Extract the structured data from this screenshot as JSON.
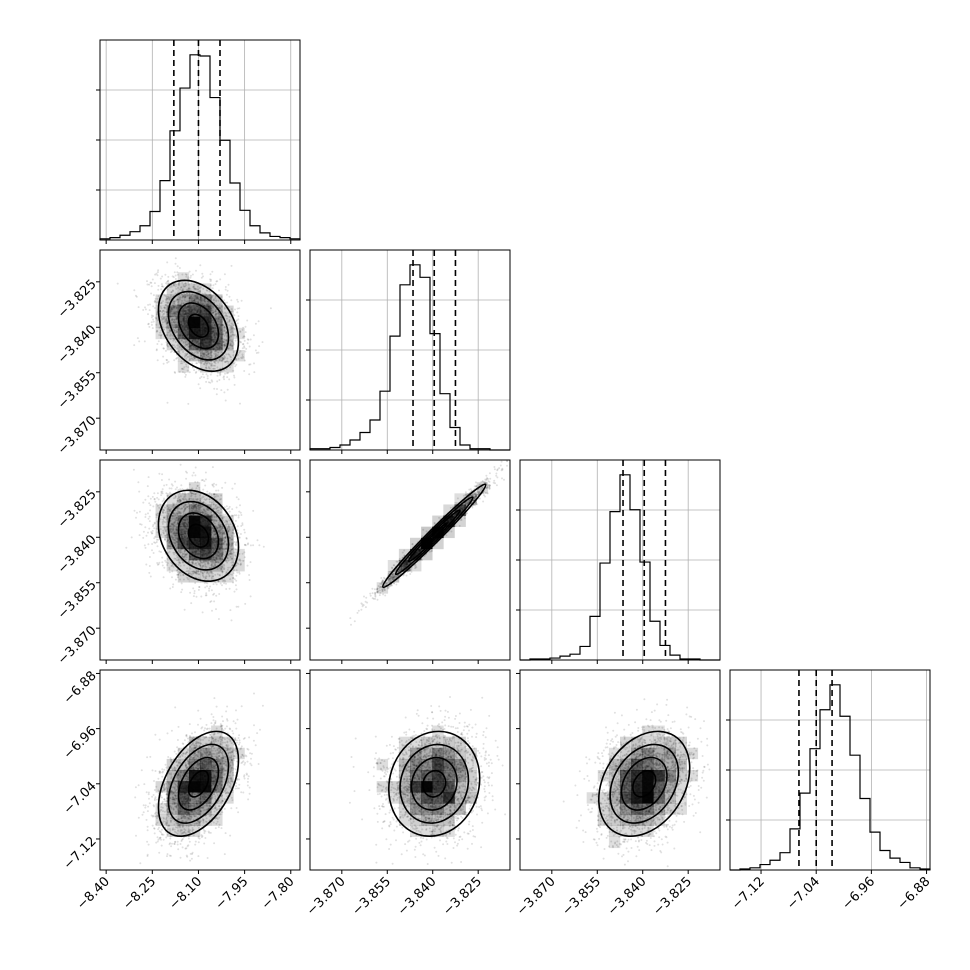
{
  "chart_data": {
    "type": "corner",
    "title": "",
    "parameters": [
      {
        "range": [
          -8.42,
          -7.77
        ],
        "ticks": [
          -8.4,
          -8.25,
          -8.1,
          -7.95,
          -7.8
        ],
        "tick_labels": [
          "−8.40",
          "−8.25",
          "−8.10",
          "−7.95",
          "−7.80"
        ],
        "quantiles": [
          -8.18,
          -8.1,
          -8.03
        ],
        "hist_counts": [
          1,
          2,
          4,
          7,
          12,
          24,
          50,
          92,
          128,
          156,
          155,
          120,
          84,
          48,
          25,
          12,
          6,
          3,
          2,
          1
        ]
      },
      {
        "range": [
          -3.8805,
          -3.8145
        ],
        "ticks": [
          -3.87,
          -3.855,
          -3.84,
          -3.825
        ],
        "tick_labels": [
          "−3.870",
          "−3.855",
          "−3.840",
          "−3.825"
        ],
        "quantiles": [
          -3.8465,
          -3.8395,
          -3.8325
        ],
        "hist_counts": [
          1,
          1,
          2,
          4,
          8,
          14,
          24,
          47,
          91,
          132,
          148,
          138,
          93,
          45,
          18,
          4,
          1,
          1,
          0,
          0
        ]
      },
      {
        "range": [
          -3.8805,
          -3.8145
        ],
        "ticks": [
          -3.87,
          -3.855,
          -3.84,
          -3.825
        ],
        "tick_labels": [
          "−3.870",
          "−3.855",
          "−3.840",
          "−3.825"
        ],
        "quantiles": [
          -3.8465,
          -3.8395,
          -3.8325
        ],
        "hist_counts": [
          0,
          1,
          1,
          2,
          4,
          6,
          14,
          45,
          100,
          153,
          191,
          155,
          101,
          40,
          15,
          5,
          1,
          1,
          0,
          0
        ]
      },
      {
        "range": [
          -7.165,
          -6.875
        ],
        "ticks": [
          -7.12,
          -7.04,
          -6.96,
          -6.88
        ],
        "tick_labels": [
          "−7.12",
          "−7.04",
          "−6.96",
          "−6.88"
        ],
        "quantiles": [
          -7.065,
          -7.04,
          -7.017
        ],
        "hist_counts": [
          0,
          1,
          2,
          5,
          9,
          16,
          38,
          71,
          112,
          148,
          171,
          142,
          106,
          66,
          35,
          18,
          11,
          7,
          2,
          1
        ]
      }
    ],
    "pairs": [
      {
        "x": 0,
        "y": 1,
        "center": [
          -8.1,
          -3.8395
        ],
        "sigma": [
          0.065,
          0.0075
        ],
        "corr": -0.35,
        "samples": 2600
      },
      {
        "x": 0,
        "y": 2,
        "center": [
          -8.1,
          -3.8395
        ],
        "sigma": [
          0.065,
          0.0075
        ],
        "corr": -0.25,
        "samples": 2600
      },
      {
        "x": 1,
        "y": 2,
        "center": [
          -3.8395,
          -3.8395
        ],
        "sigma": [
          0.0085,
          0.0085
        ],
        "corr": 0.985,
        "samples": 2600
      },
      {
        "x": 0,
        "y": 3,
        "center": [
          -8.1,
          -7.04
        ],
        "sigma": [
          0.065,
          0.038
        ],
        "corr": 0.45,
        "samples": 2600
      },
      {
        "x": 1,
        "y": 3,
        "center": [
          -3.8395,
          -7.04
        ],
        "sigma": [
          0.0075,
          0.038
        ],
        "corr": 0.1,
        "samples": 2600
      },
      {
        "x": 2,
        "y": 3,
        "center": [
          -3.8395,
          -7.04
        ],
        "sigma": [
          0.0075,
          0.038
        ],
        "corr": 0.3,
        "samples": 2600
      }
    ],
    "contour_levels_sigma": [
      0.5,
      1.0,
      1.5,
      2.0
    ],
    "grid": true,
    "colors": {
      "line": "#000000",
      "grid": "#b0b0b0",
      "points": "#000000"
    }
  }
}
